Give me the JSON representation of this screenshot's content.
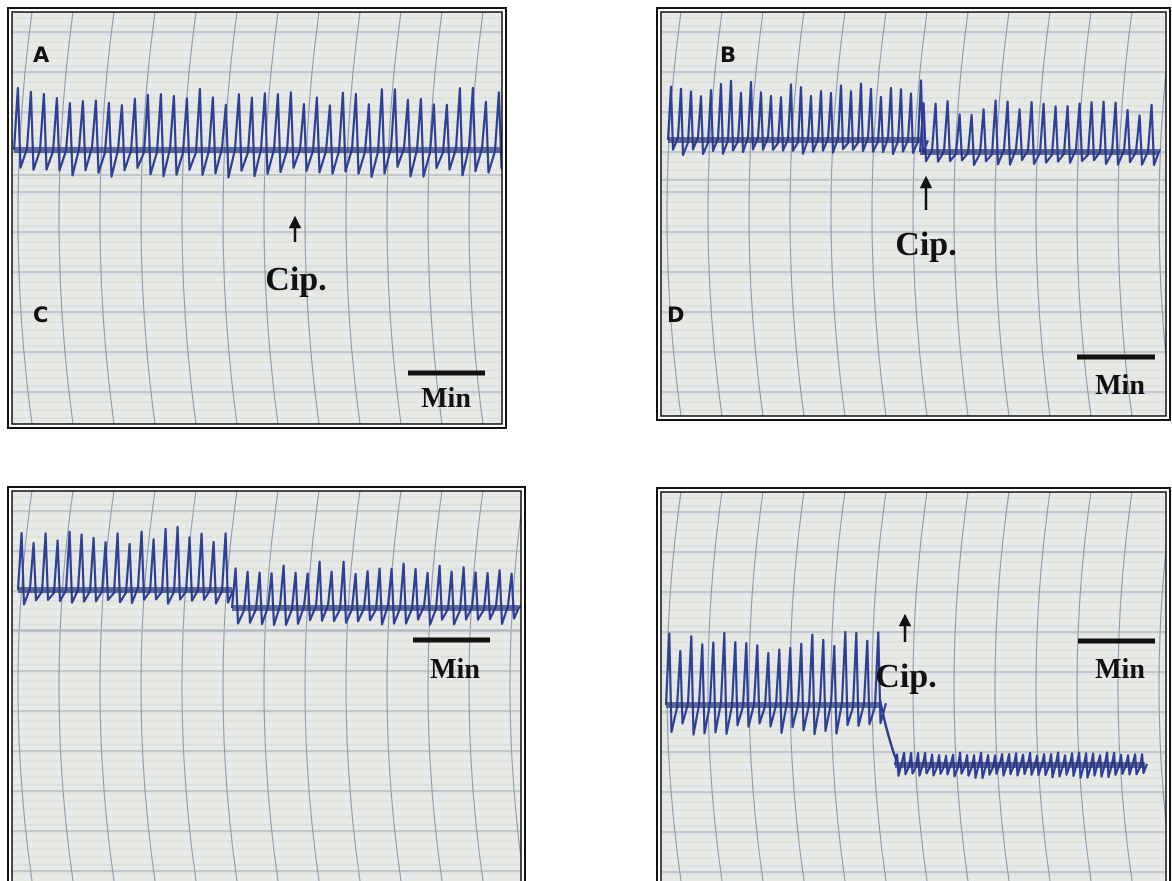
{
  "panels": [
    {
      "letter": "A",
      "letter_2": "C",
      "annotation": "Cip.",
      "scale": "Min"
    },
    {
      "letter": "B",
      "letter_2": "D",
      "annotation": "Cip.",
      "scale": "Min"
    },
    {
      "scale": "Min"
    },
    {
      "annotation": "Cip.",
      "scale": "Min"
    }
  ]
}
